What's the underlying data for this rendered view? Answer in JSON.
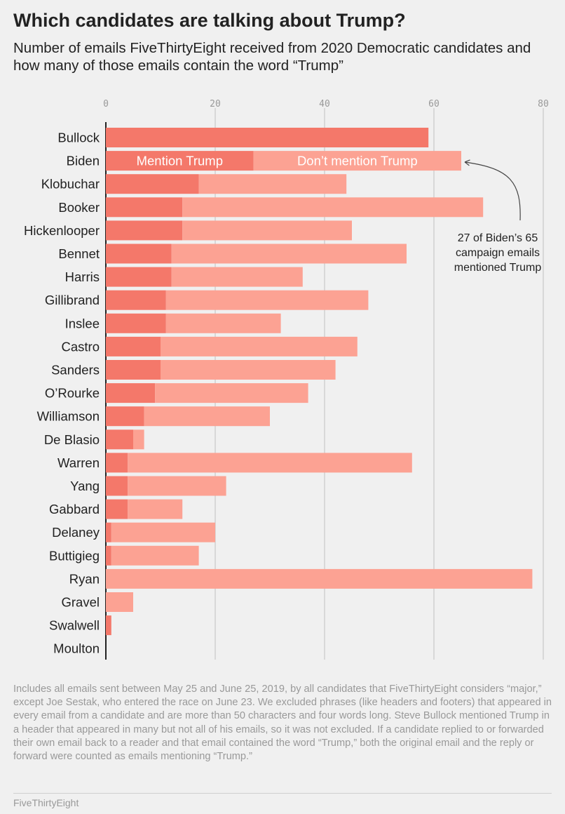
{
  "title": "Which candidates are talking about Trump?",
  "subtitle": "Number of emails FiveThirtyEight received from 2020 Democratic candidates and how many of those emails contain the word “Trump”",
  "footnote": "Includes all emails sent between May 25 and June 25, 2019, by all candidates that FiveThirtyEight considers “major,” except Joe Sestak, who entered the race on June 23. We excluded phrases (like headers and footers) that appeared in every email from a candidate and are more than 50 characters and four words long. Steve Bullock mentioned Trump in a header that appeared in many but not all of his emails, so it was not excluded. If a candidate replied to or forwarded their own email back to a reader and that email contained the word “Trump,” both the original email and the reply or forward were counted as emails mentioning “Trump.”",
  "credit": "FiveThirtyEight",
  "colors": {
    "mention": "#f4786a",
    "dont_mention": "#fca293",
    "grid": "#cfcfcf",
    "axis": "#222222",
    "tick_text": "#999999",
    "background": "#f0f0f0"
  },
  "chart_data": {
    "type": "bar",
    "orientation": "horizontal",
    "stacked": true,
    "xlim": [
      0,
      80
    ],
    "x_ticks": [
      "0",
      "20",
      "40",
      "60",
      "80"
    ],
    "x_tick_values": [
      0,
      20,
      40,
      60,
      80
    ],
    "grid": true,
    "categories": [
      "Bullock",
      "Biden",
      "Klobuchar",
      "Booker",
      "Hickenlooper",
      "Bennet",
      "Harris",
      "Gillibrand",
      "Inslee",
      "Castro",
      "Sanders",
      "O’Rourke",
      "Williamson",
      "De Blasio",
      "Warren",
      "Yang",
      "Gabbard",
      "Delaney",
      "Buttigieg",
      "Ryan",
      "Gravel",
      "Swalwell",
      "Moulton"
    ],
    "series": [
      {
        "name": "Mention Trump",
        "values": [
          59,
          27,
          17,
          14,
          14,
          12,
          12,
          11,
          11,
          10,
          10,
          9,
          7,
          5,
          4,
          4,
          4,
          1,
          1,
          0,
          0,
          1,
          0
        ]
      },
      {
        "name": "Don’t mention Trump",
        "values": [
          0,
          38,
          27,
          55,
          31,
          43,
          24,
          37,
          21,
          36,
          32,
          28,
          23,
          2,
          52,
          18,
          10,
          19,
          16,
          78,
          5,
          0,
          0
        ]
      }
    ],
    "series_label_row": "Biden",
    "annotation": {
      "text": "27 of Biden’s 65 campaign emails mentioned Trump",
      "lines": [
        "27 of Biden’s 65",
        "campaign emails",
        "mentioned Trump"
      ],
      "target": "Biden"
    }
  }
}
